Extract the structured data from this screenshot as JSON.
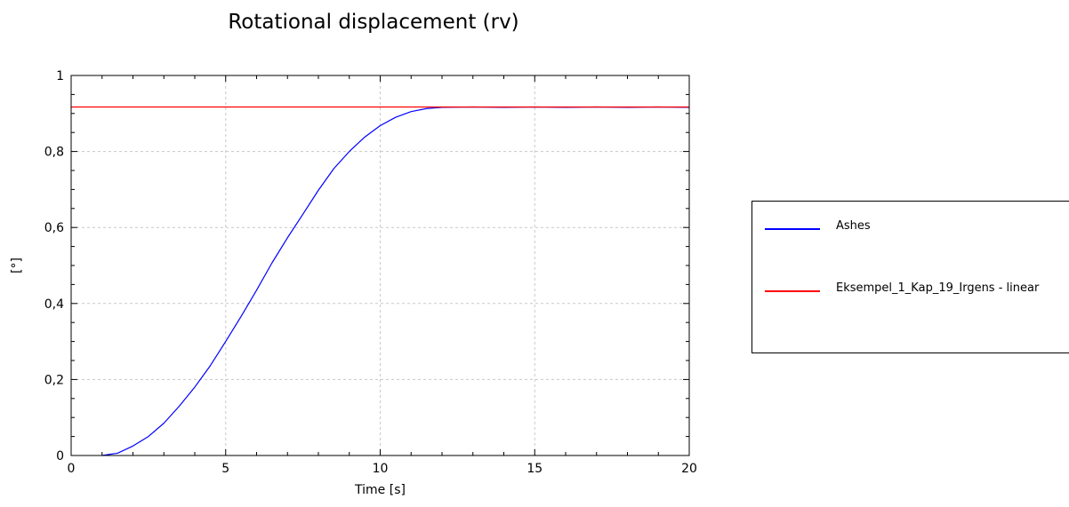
{
  "chart_data": {
    "type": "line",
    "title": "Rotational displacement (rv)",
    "xlabel": "Time [s]",
    "ylabel": "[°]",
    "xlim": [
      0,
      20
    ],
    "ylim": [
      0,
      1
    ],
    "x_ticks": [
      "0",
      "5",
      "10",
      "15",
      "20"
    ],
    "y_ticks": [
      "0",
      "0,2",
      "0,4",
      "0,6",
      "0,8",
      "1"
    ],
    "grid": true,
    "legend_position": "right",
    "series": [
      {
        "name": "Ashes",
        "color": "#0000ff",
        "x": [
          1,
          1.5,
          2,
          2.5,
          3,
          3.5,
          4,
          4.5,
          5,
          5.5,
          6,
          6.5,
          7,
          7.5,
          8,
          8.5,
          9,
          9.5,
          10,
          10.5,
          11,
          11.5,
          12,
          13,
          14,
          15,
          16,
          17,
          18,
          19,
          20
        ],
        "y": [
          0.0,
          0.006,
          0.025,
          0.05,
          0.085,
          0.13,
          0.18,
          0.236,
          0.3,
          0.366,
          0.435,
          0.507,
          0.573,
          0.635,
          0.698,
          0.755,
          0.8,
          0.838,
          0.868,
          0.89,
          0.905,
          0.913,
          0.916,
          0.917,
          0.916,
          0.917,
          0.916,
          0.917,
          0.916,
          0.917,
          0.916
        ]
      },
      {
        "name": "Eksempel_1_Kap_19_Irgens - linear",
        "color": "#ff0000",
        "x": [
          0,
          20
        ],
        "y": [
          0.917,
          0.917
        ]
      }
    ]
  }
}
